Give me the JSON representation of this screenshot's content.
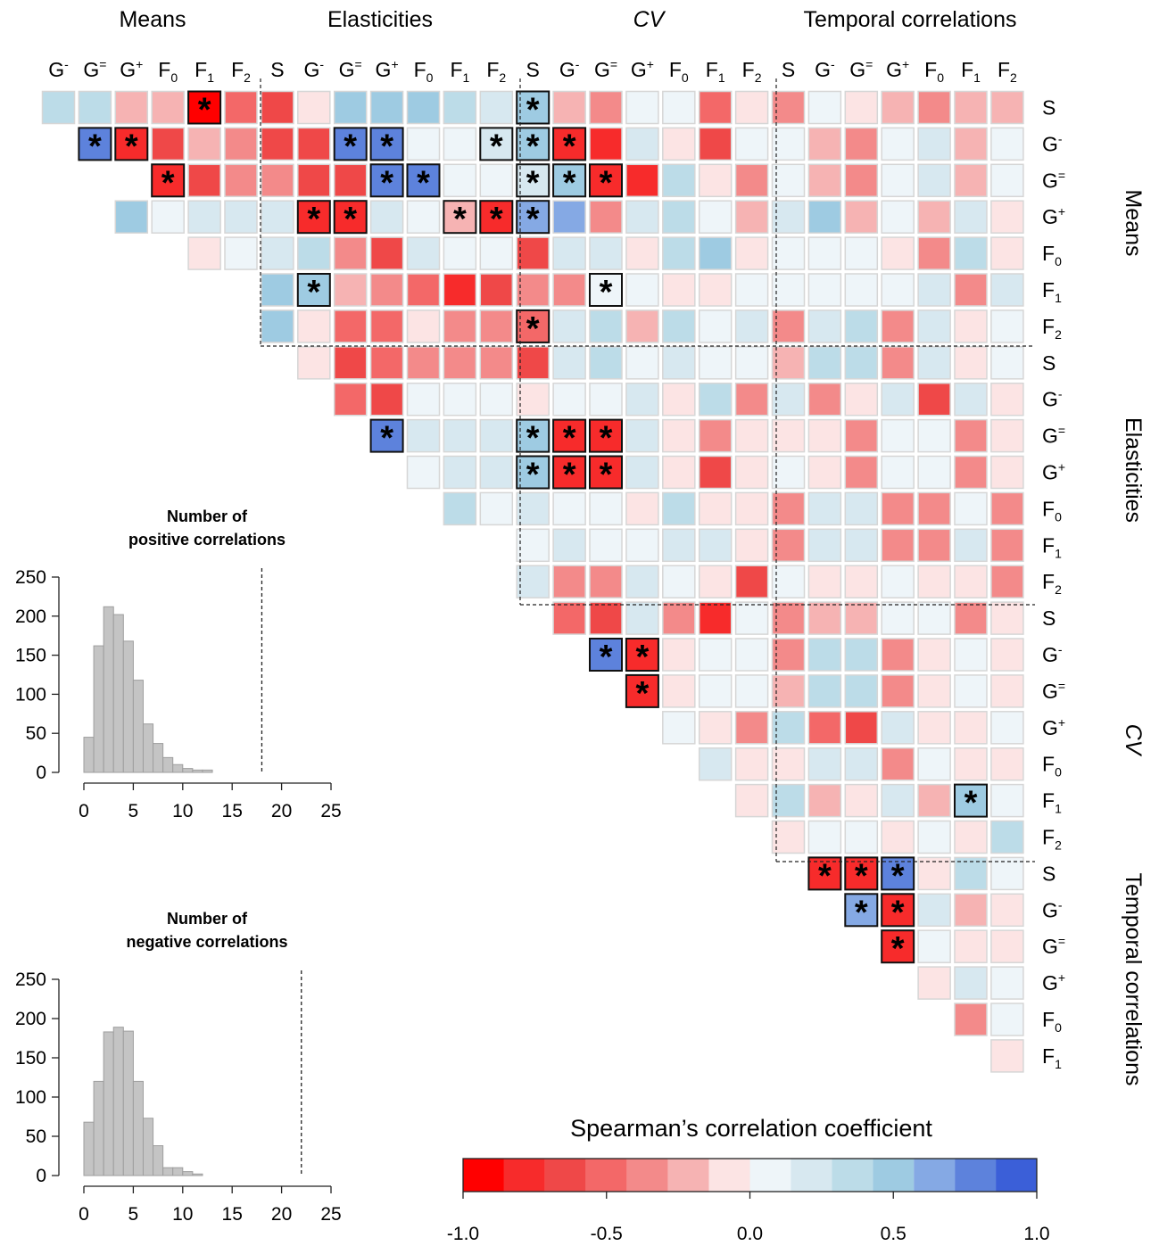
{
  "chart_data": [
    {
      "type": "heatmap",
      "title": "",
      "group_titles": {
        "top": [
          "Means",
          "Elasticities",
          "CV",
          "Temporal correlations"
        ],
        "right": [
          "Means",
          "Elasticities",
          "CV",
          "Temporal correlations"
        ]
      },
      "variables": [
        {
          "base": "S",
          "sub": "",
          "sup": ""
        },
        {
          "base": "G",
          "sub": "",
          "sup": "-"
        },
        {
          "base": "G",
          "sub": "",
          "sup": "="
        },
        {
          "base": "G",
          "sub": "",
          "sup": "+"
        },
        {
          "base": "F",
          "sub": "0",
          "sup": ""
        },
        {
          "base": "F",
          "sub": "1",
          "sup": ""
        },
        {
          "base": "F",
          "sub": "2",
          "sup": ""
        }
      ],
      "groups": [
        "Means",
        "Elasticities",
        "CV",
        "Temporal correlations"
      ],
      "legend": {
        "title": "Spearman’s correlation coefficient",
        "ticks": [
          "-1.0",
          "-0.5",
          "0.0",
          "0.5",
          "1.0"
        ],
        "range": [
          -1.0,
          1.0
        ],
        "bins": 14
      },
      "significance_marker": "*",
      "rows": [
        {
          "values": [
            0.4,
            0.35,
            -0.25,
            -0.25,
            -0.95,
            -0.45,
            -0.65,
            -0.1,
            0.45,
            0.5,
            0.45,
            0.35,
            0.2,
            0.55,
            -0.25,
            -0.35,
            0.05,
            0.05,
            -0.45,
            -0.1,
            -0.3,
            0.05,
            -0.1,
            -0.15,
            -0.35,
            -0.15,
            -0.15
          ],
          "stars": [
            4,
            13
          ]
        },
        {
          "values": [
            0.85,
            -0.85,
            -0.6,
            -0.25,
            -0.4,
            -0.65,
            -0.6,
            0.85,
            0.85,
            0.05,
            0.05,
            0.2,
            0.55,
            -0.85,
            -0.85,
            0.2,
            -0.1,
            -0.6,
            0.05,
            0.05,
            -0.15,
            -0.4,
            0.05,
            0.2,
            -0.25,
            0.05
          ],
          "stars": [
            0,
            1,
            7,
            8,
            11,
            12,
            13
          ]
        },
        {
          "values": [
            -0.85,
            -0.6,
            -0.35,
            -0.4,
            -0.65,
            -0.6,
            0.85,
            0.85,
            0.05,
            0.05,
            0.2,
            0.55,
            -0.85,
            -0.85,
            0.3,
            -0.1,
            -0.4,
            0.05,
            -0.25,
            -0.4,
            0.05,
            0.2,
            -0.25,
            0.05
          ],
          "stars": [
            0,
            6,
            7,
            10,
            11,
            12
          ]
        },
        {
          "values": [
            0.45,
            0.05,
            0.25,
            0.25,
            0.25,
            -0.85,
            -0.85,
            0.15,
            0.05,
            -0.25,
            -0.85,
            0.7,
            0.7,
            -0.4,
            0.2,
            0.3,
            0.1,
            -0.25,
            0.2,
            0.45,
            -0.25,
            0.1,
            -0.25,
            0.2,
            -0.1
          ],
          "stars": [
            5,
            6,
            9,
            10,
            11
          ]
        },
        {
          "values": [
            -0.1,
            0.05,
            0.15,
            0.3,
            -0.35,
            -0.6,
            0.15,
            0.05,
            0.1,
            -0.6,
            0.2,
            0.2,
            -0.1,
            0.35,
            0.45,
            -0.1,
            0.05,
            0.05,
            0.05,
            -0.1,
            -0.4,
            0.3,
            -0.1
          ],
          "stars": []
        },
        {
          "values": [
            0.45,
            0.55,
            -0.25,
            -0.4,
            -0.45,
            -0.8,
            -0.7,
            -0.3,
            -0.3,
            0.05,
            0.05,
            -0.1,
            -0.1,
            0.05,
            0.05,
            0.05,
            0.05,
            0.05,
            0.25,
            -0.3,
            0.2
          ],
          "stars": [
            1,
            9
          ]
        },
        {
          "values": [
            0.45,
            -0.1,
            -0.55,
            -0.55,
            -0.1,
            -0.3,
            -0.3,
            -0.55,
            0.2,
            0.3,
            -0.25,
            0.3,
            0.05,
            0.2,
            -0.3,
            0.2,
            0.4,
            -0.4,
            0.15,
            -0.1,
            0.05
          ],
          "stars": [
            7
          ]
        },
        {
          "values": [
            -0.1,
            -0.6,
            -0.55,
            -0.3,
            -0.3,
            -0.3,
            -0.6,
            0.2,
            0.3,
            0.05,
            0.2,
            0.05,
            0.05,
            -0.25,
            0.3,
            0.3,
            -0.3,
            0.2,
            -0.1,
            0.05
          ],
          "stars": []
        },
        {
          "values": [
            -0.45,
            -0.6,
            0.05,
            0.05,
            0.05,
            -0.1,
            0.05,
            0.05,
            0.2,
            -0.1,
            0.3,
            -0.3,
            0.2,
            -0.4,
            -0.1,
            0.2,
            -0.65,
            0.2,
            -0.1
          ],
          "stars": []
        },
        {
          "values": [
            0.85,
            0.2,
            0.2,
            0.2,
            0.55,
            -0.85,
            -0.85,
            0.25,
            -0.1,
            -0.4,
            -0.1,
            -0.1,
            -0.1,
            -0.4,
            0.05,
            0.05,
            -0.3,
            -0.1
          ],
          "stars": [
            0,
            4,
            5,
            6
          ]
        },
        {
          "values": [
            0.05,
            0.2,
            0.2,
            0.55,
            -0.85,
            -0.85,
            0.2,
            -0.1,
            -0.6,
            -0.1,
            0.05,
            -0.1,
            -0.4,
            0.05,
            0.05,
            -0.3,
            -0.1
          ],
          "stars": [
            3,
            4,
            5
          ]
        },
        {
          "values": [
            0.4,
            0.05,
            0.2,
            0.05,
            0.05,
            -0.1,
            0.3,
            -0.1,
            -0.1,
            -0.3,
            0.2,
            0.2,
            -0.3,
            -0.3,
            0.05,
            -0.3
          ],
          "stars": []
        },
        {
          "values": [
            0.05,
            0.2,
            0.05,
            0.05,
            0.2,
            0.2,
            -0.1,
            -0.3,
            0.2,
            0.2,
            -0.3,
            -0.3,
            0.2,
            -0.3
          ],
          "stars": []
        },
        {
          "values": [
            0.2,
            -0.3,
            -0.3,
            0.2,
            0.05,
            -0.1,
            -0.7,
            0.05,
            -0.1,
            -0.1,
            0.05,
            -0.1,
            -0.1,
            -0.3
          ],
          "stars": []
        },
        {
          "values": [
            -0.45,
            -0.6,
            0.2,
            -0.4,
            -0.75,
            0.05,
            -0.3,
            -0.15,
            -0.25,
            0.05,
            0.05,
            -0.4,
            -0.1
          ],
          "stars": []
        },
        {
          "values": [
            0.85,
            -0.85,
            -0.1,
            0.05,
            0.05,
            -0.4,
            0.3,
            0.4,
            -0.4,
            -0.1,
            0.05,
            -0.1
          ],
          "stars": [
            0,
            1
          ]
        },
        {
          "values": [
            -0.85,
            -0.1,
            0.05,
            0.05,
            -0.25,
            0.3,
            0.4,
            -0.4,
            -0.1,
            0.05,
            -0.1
          ],
          "stars": [
            0
          ]
        },
        {
          "values": [
            0.05,
            -0.1,
            -0.3,
            0.3,
            -0.45,
            -0.6,
            0.25,
            -0.1,
            -0.1,
            0.05
          ],
          "stars": []
        },
        {
          "values": [
            0.2,
            -0.1,
            -0.1,
            0.2,
            0.2,
            -0.3,
            0.1,
            -0.1,
            -0.1
          ],
          "stars": []
        },
        {
          "values": [
            -0.1,
            0.3,
            -0.25,
            -0.1,
            0.2,
            -0.25,
            0.55,
            0.05
          ],
          "stars": [
            6
          ]
        },
        {
          "values": [
            -0.1,
            0.05,
            0.05,
            -0.1,
            0.05,
            -0.1,
            0.35
          ],
          "stars": []
        },
        {
          "values": [
            -0.85,
            -0.85,
            0.85,
            -0.1,
            0.3,
            0.05
          ],
          "stars": [
            0,
            1,
            2
          ]
        },
        {
          "values": [
            0.7,
            -0.85,
            0.2,
            -0.25,
            -0.1
          ],
          "stars": [
            0,
            1
          ]
        },
        {
          "values": [
            -0.85,
            0.05,
            -0.1,
            -0.1
          ],
          "stars": [
            0
          ]
        },
        {
          "values": [
            -0.1,
            0.2,
            0.05
          ],
          "stars": []
        },
        {
          "values": [
            -0.3,
            0.05
          ],
          "stars": []
        },
        {
          "values": [
            -0.1
          ],
          "stars": []
        }
      ]
    },
    {
      "type": "bar",
      "title": "Number of\npositive correlations",
      "xlabel": "",
      "ylabel": "",
      "bin_width": 1,
      "bin_start": 0,
      "values": [
        45,
        162,
        212,
        202,
        168,
        118,
        62,
        37,
        19,
        10,
        5,
        3,
        3
      ],
      "reference_line": 18,
      "xlim": [
        0,
        25
      ],
      "ylim": [
        0,
        250
      ],
      "xticks": [
        0,
        5,
        10,
        15,
        20,
        25
      ],
      "yticks": [
        0,
        50,
        100,
        150,
        200,
        250
      ]
    },
    {
      "type": "bar",
      "title": "Number of\nnegative correlations",
      "xlabel": "",
      "ylabel": "",
      "bin_width": 1,
      "bin_start": 0,
      "values": [
        68,
        120,
        183,
        189,
        184,
        120,
        73,
        38,
        10,
        10,
        5,
        2
      ],
      "reference_line": 22,
      "xlim": [
        0,
        25
      ],
      "ylim": [
        0,
        250
      ],
      "xticks": [
        0,
        5,
        10,
        15,
        20,
        25
      ],
      "yticks": [
        0,
        50,
        100,
        150,
        200,
        250
      ]
    }
  ]
}
